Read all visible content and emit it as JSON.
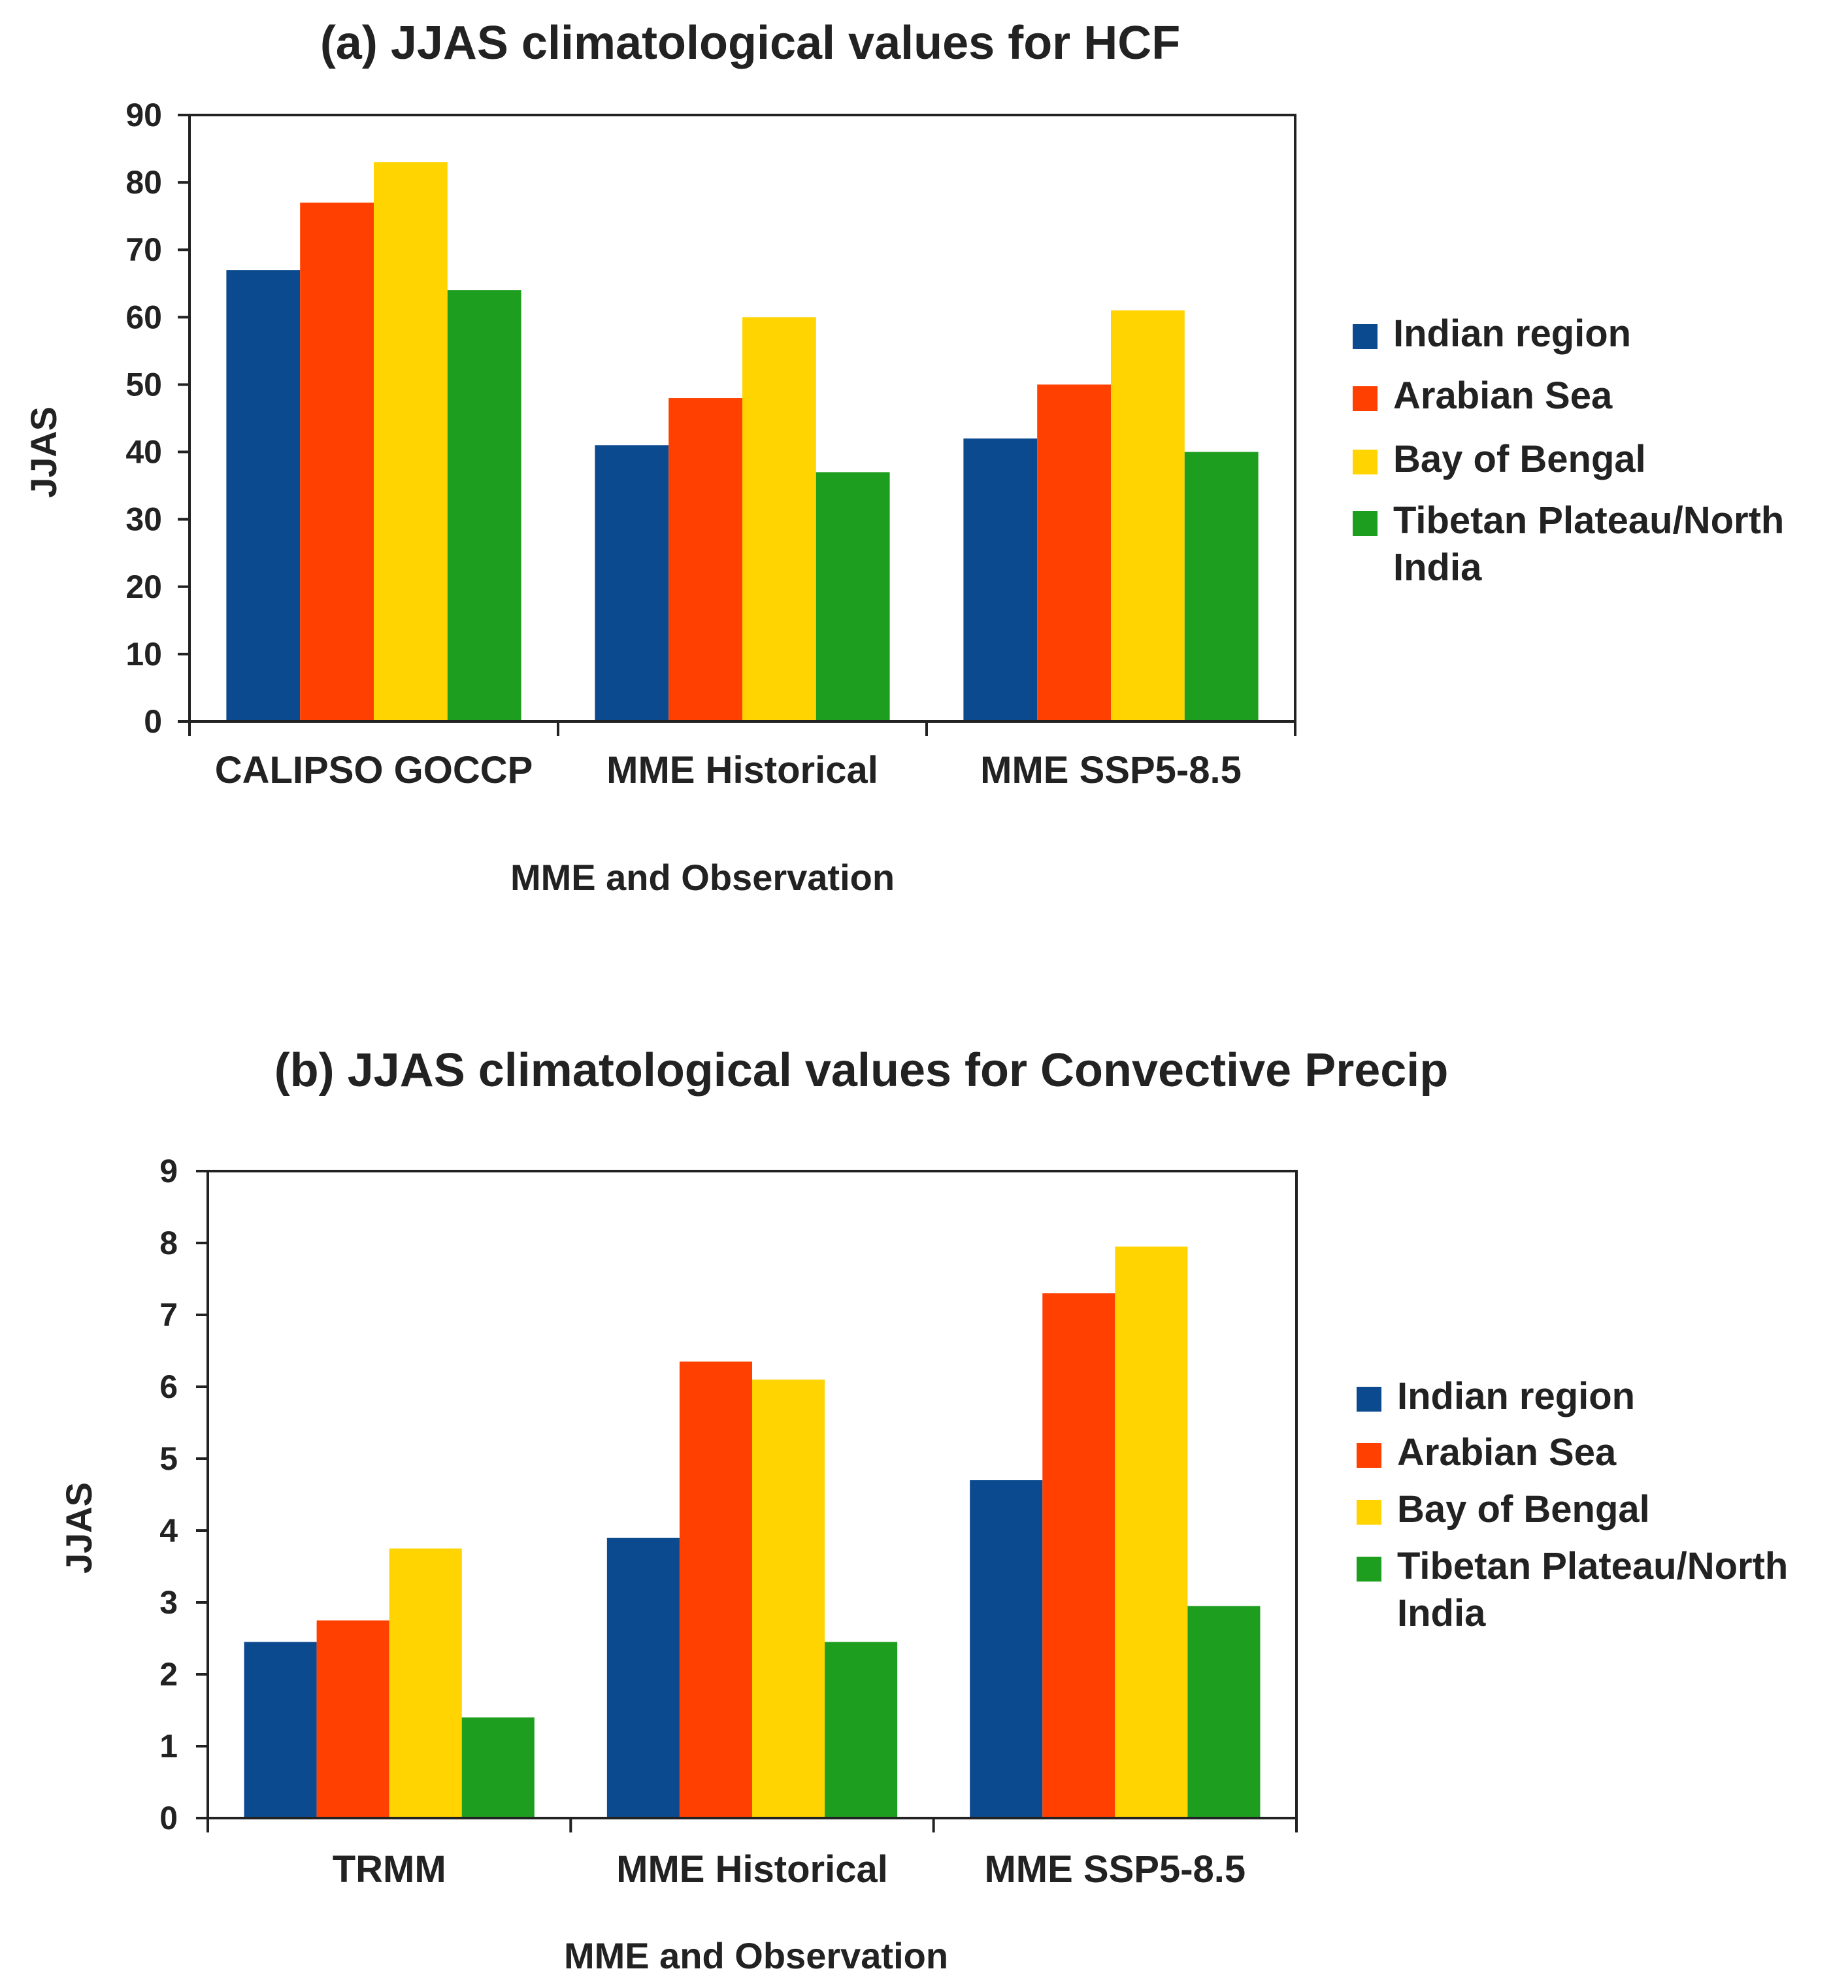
{
  "chart_data": [
    {
      "type": "bar",
      "title": "(a) JJAS climatological values for HCF",
      "xlabel": "MME and Observation",
      "ylabel": "JJAS",
      "categories": [
        "CALIPSO GOCCP",
        "MME Historical",
        "MME SSP5-8.5"
      ],
      "ylim": [
        0,
        90
      ],
      "yticks": [
        "0",
        "10",
        "20",
        "30",
        "40",
        "50",
        "60",
        "70",
        "80",
        "90"
      ],
      "series": [
        {
          "name": "Indian region",
          "color": "#0b4a8f",
          "values": [
            67,
            41,
            42
          ]
        },
        {
          "name": "Arabian Sea",
          "color": "#ff4000",
          "values": [
            77,
            48,
            50
          ]
        },
        {
          "name": "Bay of Bengal",
          "color": "#ffd400",
          "values": [
            83,
            60,
            61
          ]
        },
        {
          "name": "Tibetan Plateau/North India",
          "legend_lines": [
            "Tibetan Plateau/North",
            "India"
          ],
          "color": "#1e9e1e",
          "values": [
            64,
            37,
            40
          ]
        }
      ],
      "grid": false,
      "legend_position": "right"
    },
    {
      "type": "bar",
      "title": "(b) JJAS climatological values for Convective Precip",
      "xlabel": "MME and Observation",
      "ylabel": "JJAS",
      "categories": [
        "TRMM",
        "MME Historical",
        "MME SSP5-8.5"
      ],
      "ylim": [
        0,
        9
      ],
      "yticks": [
        "0",
        "1",
        "2",
        "3",
        "4",
        "5",
        "6",
        "7",
        "8",
        "9"
      ],
      "series": [
        {
          "name": "Indian region",
          "color": "#0b4a8f",
          "values": [
            2.45,
            3.9,
            4.7
          ]
        },
        {
          "name": "Arabian Sea",
          "color": "#ff4000",
          "values": [
            2.75,
            6.35,
            7.3
          ]
        },
        {
          "name": "Bay of Bengal",
          "color": "#ffd400",
          "values": [
            3.75,
            6.1,
            7.95
          ]
        },
        {
          "name": "Tibetan Plateau/North India",
          "legend_lines": [
            "Tibetan Plateau/North",
            "India"
          ],
          "color": "#1e9e1e",
          "values": [
            1.4,
            2.45,
            2.95
          ]
        }
      ],
      "grid": false,
      "legend_position": "right"
    }
  ]
}
